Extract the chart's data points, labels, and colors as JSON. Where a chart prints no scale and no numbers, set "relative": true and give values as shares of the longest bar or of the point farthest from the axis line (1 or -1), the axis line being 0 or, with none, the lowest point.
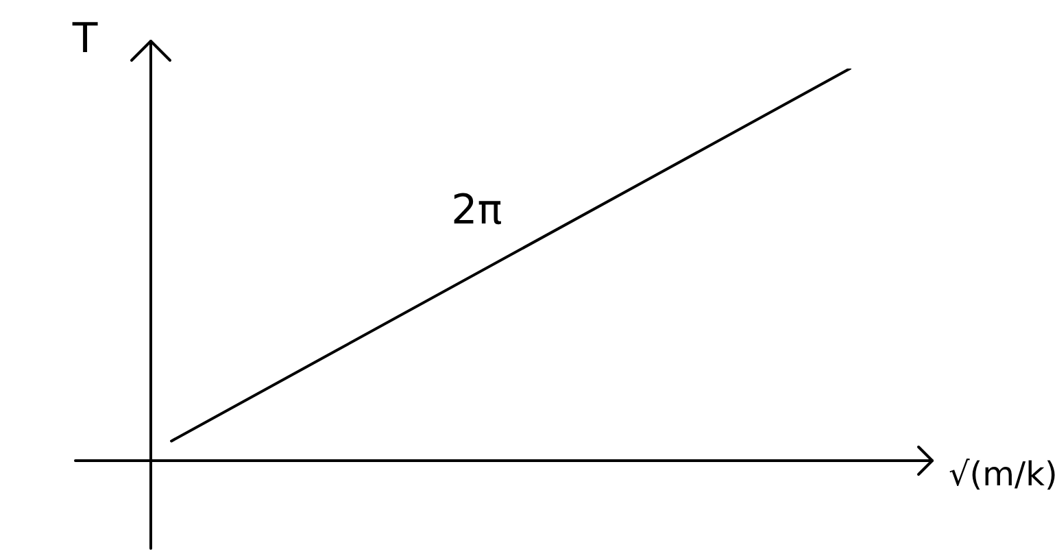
{
  "chart_data": {
    "type": "line",
    "relative": true,
    "ylabel": "T",
    "xlabel": "√(m/k)",
    "annotations": [
      "2π"
    ],
    "categories": [
      null,
      null
    ],
    "series": [
      {
        "color": "#000000",
        "values": [
          0.05,
          1
        ]
      }
    ],
    "marker": "none",
    "line_style": "solid",
    "legend": false
  }
}
